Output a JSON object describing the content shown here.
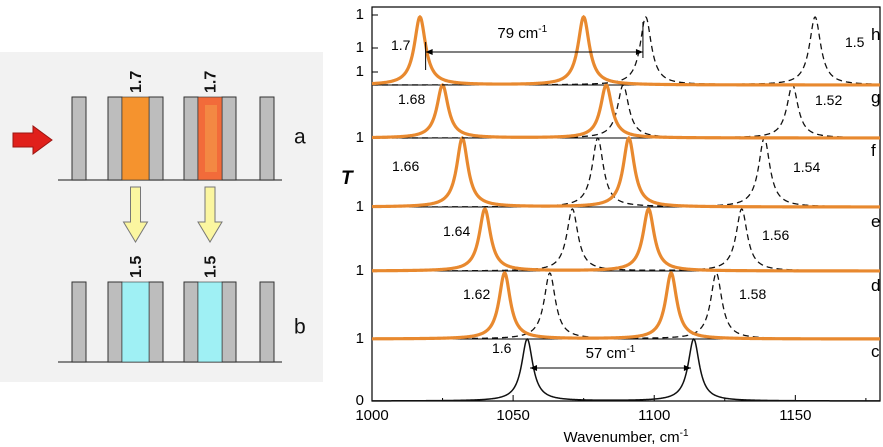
{
  "schematic": {
    "rows": [
      {
        "letter": "a",
        "labels": [
          "1.7",
          "1.7"
        ],
        "fill_left": "#f5932e",
        "fill_right": "#f26b3a"
      },
      {
        "letter": "b",
        "labels": [
          "1.5",
          "1.5"
        ],
        "fill_left": "#9ff0f4",
        "fill_right": "#9ff0f4"
      }
    ],
    "colors": {
      "bar": "#bdbdbd",
      "arrow_in": "#e0201b",
      "arrow_down": "#fbf6a0"
    }
  },
  "chart_data": {
    "type": "line",
    "xlabel": "Wavenumber, cm",
    "xlabel_sup": "-1",
    "ylabel": "T",
    "xlim": [
      1000,
      1180
    ],
    "x_ticks": [
      "1000",
      "1050",
      "1100",
      "1150"
    ],
    "x_tick_values": [
      1000,
      1050,
      1100,
      1150
    ],
    "y_ticks": [
      "0",
      "1",
      "1",
      "1",
      "1",
      "1",
      "1",
      "1"
    ],
    "colors": {
      "orange": "#e8892f",
      "black": "#111111"
    },
    "panels": [
      {
        "letter": "c",
        "orange": null,
        "dashed": null,
        "solid": [
          1055,
          1114
        ],
        "left_label": "1.6",
        "right_label": ""
      },
      {
        "letter": "d",
        "orange": [
          1047,
          1106
        ],
        "dashed": [
          1063,
          1122
        ],
        "solid": null,
        "left_label": "1.62",
        "right_label": "1.58"
      },
      {
        "letter": "e",
        "orange": [
          1040,
          1098
        ],
        "dashed": [
          1071,
          1131
        ],
        "solid": null,
        "left_label": "1.64",
        "right_label": "1.56"
      },
      {
        "letter": "f",
        "orange": [
          1032,
          1091
        ],
        "dashed": [
          1080,
          1139
        ],
        "solid": null,
        "left_label": "1.66",
        "right_label": "1.54"
      },
      {
        "letter": "g",
        "orange": [
          1025,
          1083
        ],
        "dashed": [
          1089,
          1149
        ],
        "solid": null,
        "left_label": "1.68",
        "right_label": "1.52"
      },
      {
        "letter": "h",
        "orange": [
          1017,
          1075
        ],
        "dashed": [
          1097,
          1157
        ],
        "solid": null,
        "left_label": "1.7",
        "right_label": "1.5"
      }
    ],
    "annotations": [
      {
        "text": "79 cm",
        "sup": "-1",
        "x1": 1019,
        "x2": 1096,
        "panel": 5
      },
      {
        "text": "57 cm",
        "sup": "-1",
        "x1": 1056,
        "x2": 1113,
        "panel": 0
      }
    ]
  }
}
